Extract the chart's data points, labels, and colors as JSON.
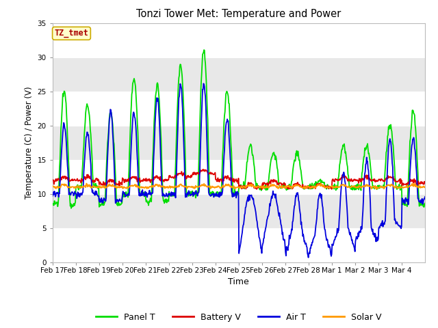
{
  "title": "Tonzi Tower Met: Temperature and Power",
  "xlabel": "Time",
  "ylabel": "Temperature (C) / Power (V)",
  "ylim": [
    0,
    35
  ],
  "yticks": [
    0,
    5,
    10,
    15,
    20,
    25,
    30,
    35
  ],
  "fig_bg": "#ffffff",
  "plot_bg": "#ffffff",
  "band_color": "#e8e8e8",
  "annotation_text": "TZ_tmet",
  "annotation_color": "#aa0000",
  "annotation_bg": "#ffffcc",
  "annotation_border": "#ccaa00",
  "colors": {
    "panel_t": "#00dd00",
    "battery_v": "#dd0000",
    "air_t": "#0000dd",
    "solar_v": "#ff9900"
  },
  "x_tick_labels": [
    "Feb 17",
    "Feb 18",
    "Feb 19",
    "Feb 20",
    "Feb 21",
    "Feb 22",
    "Feb 23",
    "Feb 24",
    "Feb 25",
    "Feb 26",
    "Feb 27",
    "Feb 28",
    "Mar 1",
    "Mar 2",
    "Mar 3",
    "Mar 4"
  ],
  "n_points": 800,
  "panel_peaks": [
    25,
    23,
    22,
    27,
    26,
    29,
    31,
    25,
    17,
    16,
    16,
    12,
    17,
    17,
    20,
    22
  ],
  "panel_base": [
    8.5,
    11,
    8.5,
    10,
    9,
    10,
    10,
    10,
    11,
    11,
    11,
    11,
    11,
    11,
    11,
    8.5
  ],
  "air_peaks": [
    20,
    19,
    22,
    22,
    24,
    26,
    26,
    21,
    10,
    10,
    10,
    10,
    13,
    15,
    18,
    18
  ],
  "air_base": [
    10,
    10,
    9,
    10,
    10,
    10,
    10,
    10,
    8,
    7.5,
    5,
    4.5,
    5,
    5,
    6,
    9
  ],
  "air_trough": [
    10,
    10,
    9,
    10,
    10,
    10,
    10,
    10,
    1,
    2,
    1,
    1,
    2,
    3,
    5,
    9
  ],
  "battery_base": [
    12,
    12,
    11.5,
    12,
    12,
    12.5,
    13,
    12,
    11,
    11.5,
    11,
    11,
    12,
    12,
    12,
    11.5
  ],
  "solar_base": 11.0
}
